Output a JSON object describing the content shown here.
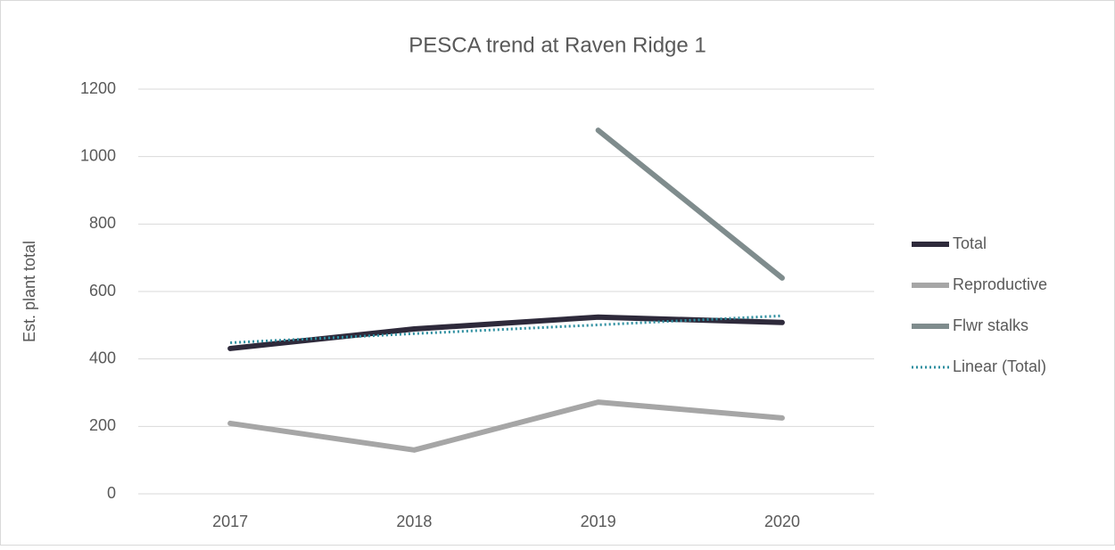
{
  "chart_data": {
    "type": "line",
    "title": "PESCA trend at Raven Ridge 1",
    "y_label": "Est. plant total",
    "categories": [
      "2017",
      "2018",
      "2019",
      "2020"
    ],
    "series": [
      {
        "name": "Total",
        "color": "#2e2a3b",
        "style": "solid",
        "values": [
          431,
          489,
          524,
          508
        ]
      },
      {
        "name": "Reproductive",
        "color": "#a6a6a6",
        "style": "solid",
        "values": [
          209,
          130,
          272,
          225
        ]
      },
      {
        "name": "Flwr stalks",
        "color": "#7f8c8d",
        "style": "solid",
        "values": [
          null,
          null,
          1078,
          640
        ]
      },
      {
        "name": "Linear (Total)",
        "color": "#2e8fa0",
        "style": "dotted",
        "values": [
          448,
          475,
          501,
          528
        ]
      }
    ],
    "ylim": [
      0,
      1200
    ],
    "yticks": [
      0,
      200,
      400,
      600,
      800,
      1000,
      1200
    ],
    "grid": true,
    "legend": "right"
  }
}
